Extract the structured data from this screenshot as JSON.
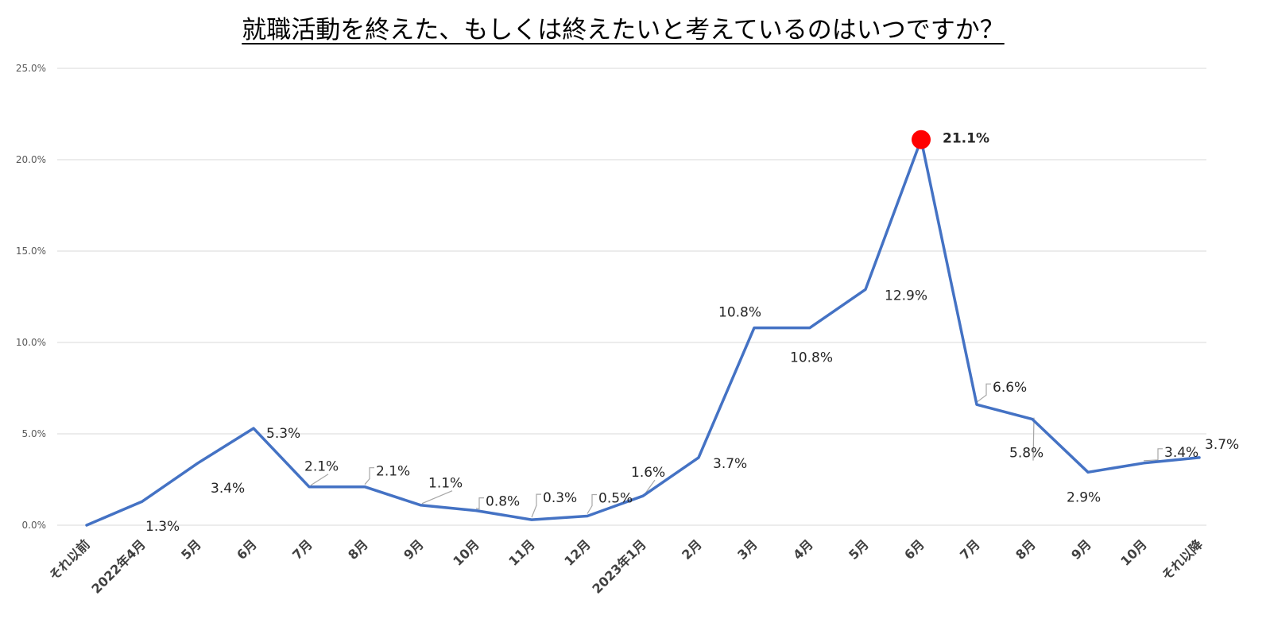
{
  "chart_data": {
    "type": "line",
    "title": "就職活動を終えた、もしくは終えたいと考えているのはいつですか？",
    "xlabel": "",
    "ylabel": "",
    "ylim": [
      0,
      25
    ],
    "y_ticks": [
      "0.0%",
      "5.0%",
      "10.0%",
      "15.0%",
      "20.0%",
      "25.0%"
    ],
    "grid": true,
    "legend": "none",
    "categories": [
      "それ以前",
      "2022年4月",
      "5月",
      "6月",
      "7月",
      "8月",
      "9月",
      "10月",
      "11月",
      "12月",
      "2023年1月",
      "2月",
      "3月",
      "4月",
      "5月",
      "6月",
      "7月",
      "8月",
      "9月",
      "10月",
      "それ以降"
    ],
    "series": [
      {
        "values": [
          0.0,
          1.3,
          3.4,
          5.3,
          2.1,
          2.1,
          1.1,
          0.8,
          0.3,
          0.5,
          1.6,
          3.7,
          10.8,
          10.8,
          12.9,
          21.1,
          6.6,
          5.8,
          2.9,
          3.4,
          3.7
        ],
        "color": "#4472C4"
      }
    ],
    "data_labels": [
      "",
      "1.3%",
      "3.4%",
      "5.3%",
      "2.1%",
      "2.1%",
      "1.1%",
      "0.8%",
      "0.3%",
      "0.5%",
      "1.6%",
      "3.7%",
      "10.8%",
      "10.8%",
      "12.9%",
      "21.1%",
      "6.6%",
      "5.8%",
      "2.9%",
      "3.4%",
      "3.7%"
    ],
    "highlight": {
      "index": 15,
      "label": "21.1%",
      "category": "6月",
      "color": "#FF0000"
    },
    "colors": {
      "line": "#4472C4",
      "grid": "#D9D9D9",
      "highlight": "#FF0000",
      "leader": "#A6A6A6"
    }
  }
}
